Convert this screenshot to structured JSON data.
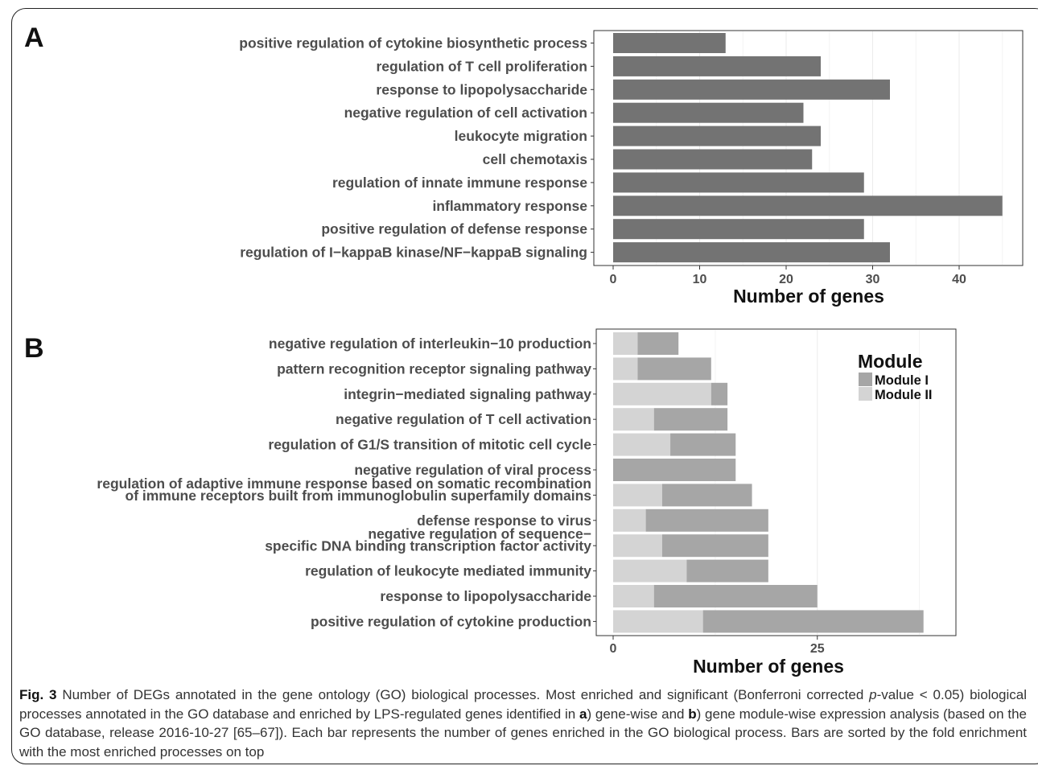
{
  "chart_data": [
    {
      "panel": "A",
      "type": "bar",
      "orientation": "horizontal",
      "categories": [
        "positive regulation of cytokine biosynthetic process",
        "regulation of T cell proliferation",
        "response to lipopolysaccharide",
        "negative regulation of cell activation",
        "leukocyte migration",
        "cell chemotaxis",
        "regulation of innate immune response",
        "inflammatory response",
        "positive regulation of defense response",
        "regulation of I−kappaB kinase/NF−kappaB signaling"
      ],
      "values": [
        13,
        24,
        32,
        22,
        24,
        23,
        29,
        45,
        29,
        32
      ],
      "xlabel": "Number of genes",
      "xlim": [
        0,
        47
      ],
      "xticks": [
        0,
        10,
        20,
        30,
        40
      ],
      "grid": true,
      "bar_color": "#737373"
    },
    {
      "panel": "B",
      "type": "bar",
      "orientation": "horizontal",
      "stacked": true,
      "categories": [
        [
          "negative regulation of interleukin−10 production"
        ],
        [
          "pattern recognition receptor signaling pathway"
        ],
        [
          "integrin−mediated signaling pathway"
        ],
        [
          "negative regulation of T cell activation"
        ],
        [
          "regulation of G1/S transition of mitotic cell cycle"
        ],
        [
          "negative regulation of viral process"
        ],
        [
          "regulation of adaptive immune response based on somatic recombination",
          "of immune receptors built from immunoglobulin superfamily domains"
        ],
        [
          "defense response to virus"
        ],
        [
          "negative regulation of sequence−",
          "specific DNA binding transcription factor activity"
        ],
        [
          "regulation of leukocyte mediated immunity"
        ],
        [
          "response to lipopolysaccharide"
        ],
        [
          "positive regulation of cytokine production"
        ]
      ],
      "series": [
        {
          "name": "Module II",
          "color": "#d4d4d4",
          "values": [
            3,
            3,
            12,
            5,
            7,
            0,
            6,
            4,
            6,
            9,
            5,
            11
          ]
        },
        {
          "name": "Module I",
          "color": "#a6a6a6",
          "values": [
            5,
            9,
            2,
            9,
            8,
            15,
            11,
            15,
            13,
            10,
            20,
            27
          ]
        }
      ],
      "stack_order": [
        "Module II",
        "Module I"
      ],
      "xlabel": "Number of genes",
      "xlim": [
        0,
        40
      ],
      "xticks": [
        0,
        25
      ],
      "grid": true,
      "legend": {
        "title": "Module",
        "position": "top-right",
        "entries": [
          "Module I",
          "Module II"
        ]
      }
    }
  ],
  "caption": {
    "label": "Fig. 3",
    "text_1": " Number of DEGs annotated in the gene ontology (GO) biological processes. Most enriched and significant (Bonferroni corrected ",
    "p": "p",
    "text_2": "-value < 0.05) biological processes annotated in the GO database and enriched by LPS-regulated genes identified in ",
    "a": "a",
    "text_3": ") gene-wise and ",
    "b": "b",
    "text_4": ") gene module-wise expression analysis (based on the GO database, release 2016-10-27 [65–67]). Each bar represents the number of genes enriched in the GO biological process. Bars are sorted by the fold enrichment with the most enriched processes on top"
  }
}
